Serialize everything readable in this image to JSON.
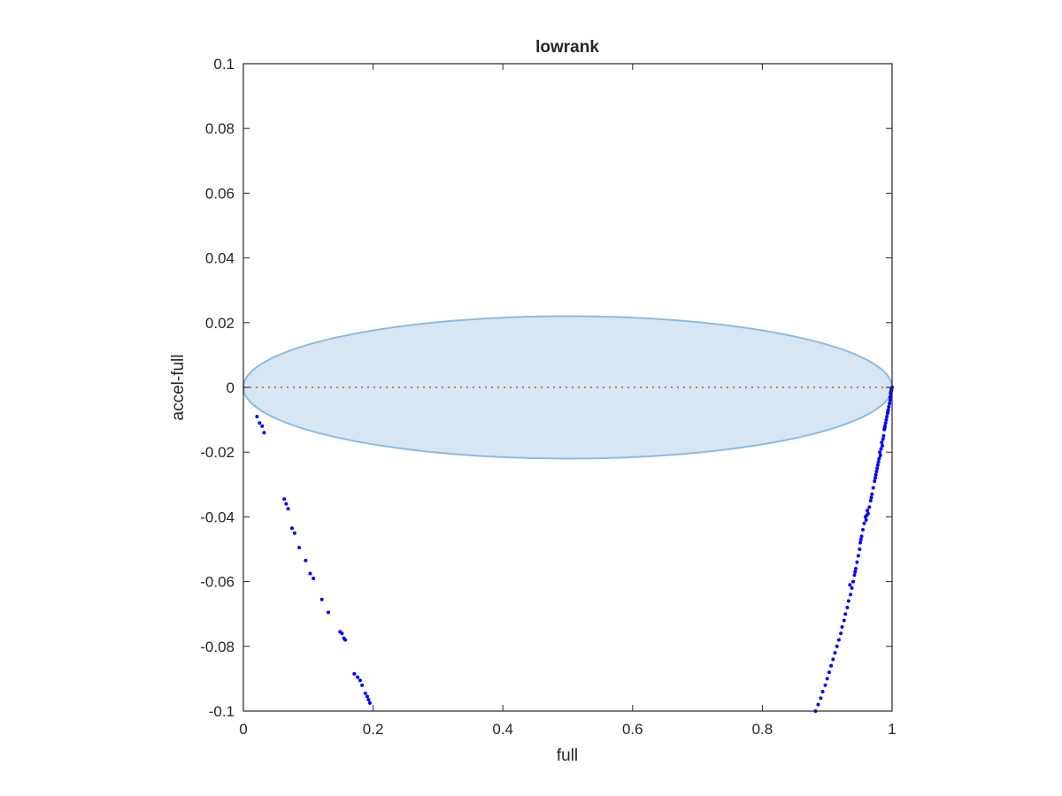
{
  "chart_data": {
    "type": "scatter",
    "title": "lowrank",
    "xlabel": "full",
    "ylabel": "accel-full",
    "xlim": [
      0,
      1
    ],
    "ylim": [
      -0.1,
      0.1
    ],
    "xticks": [
      0,
      0.2,
      0.4,
      0.6,
      0.8,
      1
    ],
    "xtick_labels": [
      "0",
      "0.2",
      "0.4",
      "0.6",
      "0.8",
      "1"
    ],
    "yticks": [
      0.1,
      0.08,
      0.06,
      0.04,
      0.02,
      0,
      -0.02,
      -0.04,
      -0.06,
      -0.08,
      -0.1
    ],
    "ytick_labels": [
      "0.1",
      "0.08",
      "0.06",
      "0.04",
      "0.02",
      "0",
      "-0.02",
      "-0.04",
      "-0.06",
      "-0.08",
      "-0.1"
    ],
    "grid": false,
    "box": true,
    "ellipse": {
      "x_range": [
        0,
        1
      ],
      "y_range": [
        -0.022,
        0.022
      ],
      "fill_color": "#d6e6f3",
      "edge_color": "#8dbbdf"
    },
    "reference_line": {
      "y": 0,
      "style": "dotted",
      "color": "#ff3333"
    },
    "marker_color": "#0000ff",
    "series": [
      {
        "points": [
          [
            0.021,
            -0.009
          ],
          [
            0.025,
            -0.011
          ],
          [
            0.029,
            -0.012
          ],
          [
            0.032,
            -0.014
          ],
          [
            0.063,
            -0.0345
          ],
          [
            0.066,
            -0.036
          ],
          [
            0.069,
            -0.0375
          ],
          [
            0.075,
            -0.0435
          ],
          [
            0.079,
            -0.045
          ],
          [
            0.086,
            -0.0495
          ],
          [
            0.096,
            -0.0535
          ],
          [
            0.103,
            -0.0575
          ],
          [
            0.108,
            -0.059
          ],
          [
            0.121,
            -0.0655
          ],
          [
            0.131,
            -0.0695
          ],
          [
            0.149,
            -0.0755
          ],
          [
            0.152,
            -0.076
          ],
          [
            0.155,
            -0.0775
          ],
          [
            0.157,
            -0.078
          ],
          [
            0.171,
            -0.0885
          ],
          [
            0.176,
            -0.0895
          ],
          [
            0.18,
            -0.0905
          ],
          [
            0.183,
            -0.092
          ],
          [
            0.188,
            -0.0945
          ],
          [
            0.191,
            -0.0955
          ],
          [
            0.193,
            -0.0965
          ],
          [
            0.195,
            -0.0975
          ],
          [
            0.882,
            -0.1
          ],
          [
            0.886,
            -0.098
          ],
          [
            0.89,
            -0.096
          ],
          [
            0.893,
            -0.094
          ],
          [
            0.897,
            -0.092
          ],
          [
            0.9,
            -0.09
          ],
          [
            0.903,
            -0.088
          ],
          [
            0.906,
            -0.086
          ],
          [
            0.909,
            -0.084
          ],
          [
            0.912,
            -0.082
          ],
          [
            0.915,
            -0.08
          ],
          [
            0.918,
            -0.078
          ],
          [
            0.921,
            -0.076
          ],
          [
            0.923,
            -0.074
          ],
          [
            0.926,
            -0.072
          ],
          [
            0.928,
            -0.07
          ],
          [
            0.931,
            -0.068
          ],
          [
            0.933,
            -0.066
          ],
          [
            0.936,
            -0.064
          ],
          [
            0.938,
            -0.062
          ],
          [
            0.94,
            -0.06
          ],
          [
            0.942,
            -0.058
          ],
          [
            0.944,
            -0.056
          ],
          [
            0.946,
            -0.054
          ],
          [
            0.948,
            -0.052
          ],
          [
            0.95,
            -0.05
          ],
          [
            0.951,
            -0.048
          ],
          [
            0.953,
            -0.046
          ],
          [
            0.955,
            -0.044
          ],
          [
            0.957,
            -0.042
          ],
          [
            0.959,
            -0.04
          ],
          [
            0.961,
            -0.0395
          ],
          [
            0.963,
            -0.039
          ],
          [
            0.965,
            -0.037
          ],
          [
            0.967,
            -0.035
          ],
          [
            0.969,
            -0.033
          ],
          [
            0.971,
            -0.031
          ],
          [
            0.973,
            -0.029
          ],
          [
            0.974,
            -0.028
          ],
          [
            0.976,
            -0.026
          ],
          [
            0.978,
            -0.024
          ],
          [
            0.98,
            -0.022
          ],
          [
            0.981,
            -0.02
          ],
          [
            0.983,
            -0.019
          ],
          [
            0.984,
            -0.017
          ],
          [
            0.986,
            -0.016
          ],
          [
            0.987,
            -0.015
          ],
          [
            0.988,
            -0.013
          ],
          [
            0.989,
            -0.012
          ],
          [
            0.99,
            -0.011
          ],
          [
            0.991,
            -0.01
          ],
          [
            0.992,
            -0.009
          ],
          [
            0.993,
            -0.008
          ],
          [
            0.994,
            -0.007
          ],
          [
            0.995,
            -0.006
          ],
          [
            0.996,
            -0.005
          ],
          [
            0.997,
            -0.004
          ],
          [
            0.997,
            -0.003
          ],
          [
            0.998,
            -0.002
          ],
          [
            0.998,
            -0.0015
          ],
          [
            0.999,
            -0.001
          ],
          [
            0.999,
            -0.0005
          ],
          [
            1.0,
            0.0
          ],
          [
            0.935,
            -0.061
          ],
          [
            0.943,
            -0.057
          ],
          [
            0.952,
            -0.047
          ],
          [
            0.96,
            -0.041
          ],
          [
            0.962,
            -0.038
          ],
          [
            0.968,
            -0.034
          ],
          [
            0.975,
            -0.027
          ],
          [
            0.979,
            -0.023
          ],
          [
            0.985,
            -0.018
          ],
          [
            0.977,
            -0.025
          ],
          [
            0.982,
            -0.021
          ],
          [
            0.9885,
            -0.0125
          ],
          [
            0.9935,
            -0.0075
          ]
        ]
      }
    ]
  }
}
